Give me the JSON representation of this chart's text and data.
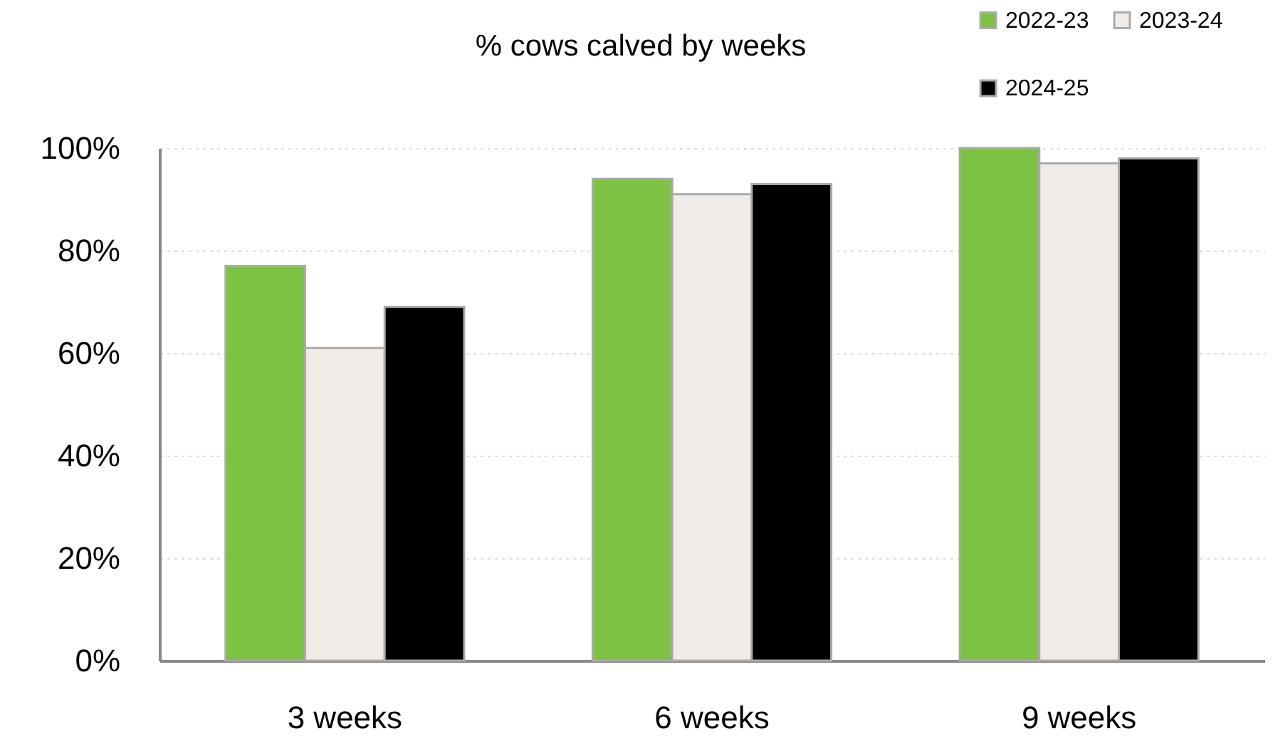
{
  "chart_data": {
    "type": "bar",
    "title": "% cows calved by weeks",
    "categories": [
      "3 weeks",
      "6 weeks",
      "9 weeks"
    ],
    "series": [
      {
        "name": "2022-23",
        "color": "#7dc243",
        "values": [
          77,
          94,
          100
        ]
      },
      {
        "name": "2023-24",
        "color": "#f2ece9",
        "values": [
          61,
          91,
          97
        ]
      },
      {
        "name": "2024-25",
        "color": "#000000",
        "values": [
          69,
          93,
          98
        ]
      }
    ],
    "ylim": [
      0,
      100
    ],
    "yticks": [
      {
        "value": 0,
        "label": "0%"
      },
      {
        "value": 20,
        "label": "20%"
      },
      {
        "value": 40,
        "label": "40%"
      },
      {
        "value": 60,
        "label": "60%"
      },
      {
        "value": 80,
        "label": "80%"
      },
      {
        "value": 100,
        "label": "100%"
      }
    ],
    "grid": "y",
    "legend": "top right"
  }
}
